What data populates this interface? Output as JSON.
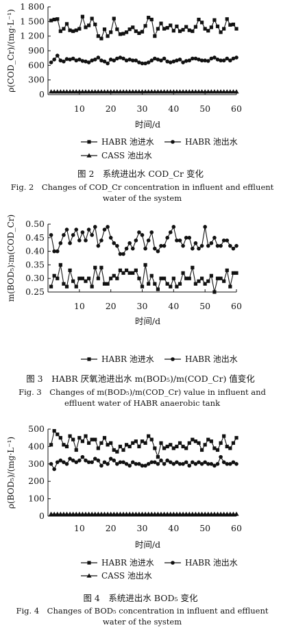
{
  "chart_data": [
    {
      "type": "line",
      "ylabel": "ρ(COD_Cr)/(mg·L⁻¹)",
      "xlabel": "时间/d",
      "ylim": [
        0,
        1800
      ],
      "yticks": [
        "0",
        "300",
        "600",
        "900",
        "1 200",
        "1 500",
        "1 800"
      ],
      "xticks": [
        "10",
        "20",
        "30",
        "40",
        "50",
        "60"
      ],
      "xlim": [
        0,
        60
      ],
      "legend": [
        "HABR 池进水",
        "HABR 池出水",
        "CASS 池出水"
      ],
      "series": [
        {
          "name": "HABR 池进水",
          "marker": "square",
          "x": [
            1,
            2,
            3,
            4,
            5,
            6,
            7,
            8,
            9,
            10,
            11,
            12,
            13,
            14,
            15,
            16,
            17,
            18,
            19,
            20,
            21,
            22,
            23,
            24,
            25,
            26,
            27,
            28,
            29,
            30,
            31,
            32,
            33,
            34,
            35,
            36,
            37,
            38,
            39,
            40,
            41,
            42,
            43,
            44,
            45,
            46,
            47,
            48,
            49,
            50,
            51,
            52,
            53,
            54,
            55,
            56,
            57,
            58,
            59,
            60
          ],
          "values": [
            1520,
            1540,
            1550,
            1300,
            1350,
            1450,
            1320,
            1300,
            1320,
            1350,
            1600,
            1380,
            1420,
            1560,
            1440,
            1200,
            1150,
            1340,
            1200,
            1280,
            1560,
            1340,
            1240,
            1250,
            1280,
            1340,
            1380,
            1300,
            1260,
            1290,
            1410,
            1580,
            1540,
            1200,
            1350,
            1460,
            1350,
            1370,
            1420,
            1310,
            1400,
            1300,
            1330,
            1390,
            1320,
            1300,
            1390,
            1540,
            1480,
            1350,
            1310,
            1380,
            1530,
            1400,
            1280,
            1350,
            1550,
            1430,
            1440,
            1350
          ]
        },
        {
          "name": "HABR 池出水",
          "marker": "circle",
          "x": [
            1,
            2,
            3,
            4,
            5,
            6,
            7,
            8,
            9,
            10,
            11,
            12,
            13,
            14,
            15,
            16,
            17,
            18,
            19,
            20,
            21,
            22,
            23,
            24,
            25,
            26,
            27,
            28,
            29,
            30,
            31,
            32,
            33,
            34,
            35,
            36,
            37,
            38,
            39,
            40,
            41,
            42,
            43,
            44,
            45,
            46,
            47,
            48,
            49,
            50,
            51,
            52,
            53,
            54,
            55,
            56,
            57,
            58,
            59,
            60
          ],
          "values": [
            660,
            720,
            800,
            700,
            680,
            730,
            720,
            740,
            700,
            720,
            690,
            680,
            660,
            700,
            720,
            760,
            700,
            680,
            640,
            720,
            700,
            740,
            760,
            740,
            700,
            720,
            700,
            700,
            660,
            640,
            640,
            660,
            700,
            740,
            720,
            700,
            740,
            680,
            660,
            680,
            700,
            720,
            660,
            690,
            700,
            740,
            740,
            720,
            700,
            700,
            690,
            740,
            760,
            720,
            700,
            700,
            740,
            700,
            740,
            760
          ]
        },
        {
          "name": "CASS 池出水",
          "marker": "triangle",
          "x": [
            1,
            2,
            3,
            4,
            5,
            6,
            7,
            8,
            9,
            10,
            11,
            12,
            13,
            14,
            15,
            16,
            17,
            18,
            19,
            20,
            21,
            22,
            23,
            24,
            25,
            26,
            27,
            28,
            29,
            30,
            31,
            32,
            33,
            34,
            35,
            36,
            37,
            38,
            39,
            40,
            41,
            42,
            43,
            44,
            45,
            46,
            47,
            48,
            49,
            50,
            51,
            52,
            53,
            54,
            55,
            56,
            57,
            58,
            59,
            60
          ],
          "values": [
            60,
            60,
            60,
            60,
            60,
            60,
            60,
            60,
            60,
            60,
            60,
            60,
            60,
            60,
            60,
            60,
            60,
            60,
            60,
            60,
            60,
            60,
            60,
            60,
            60,
            60,
            60,
            60,
            60,
            60,
            60,
            60,
            60,
            60,
            60,
            60,
            60,
            60,
            60,
            60,
            60,
            60,
            60,
            60,
            60,
            60,
            60,
            60,
            60,
            60,
            60,
            60,
            60,
            60,
            60,
            60,
            60,
            60,
            60,
            60
          ]
        }
      ],
      "caption_zh": "图 2　系统进出水 COD_Cr 变化",
      "caption_en": "Fig. 2　Changes of COD_Cr concentration in influent and effluent water of the system"
    },
    {
      "type": "line",
      "ylabel": "m(BOD₅)∶m(COD_Cr)",
      "xlabel": "时间/d",
      "ylim": [
        0.25,
        0.5
      ],
      "yticks": [
        "0.25",
        "0.30",
        "0.35",
        "0.40",
        "0.45",
        "0.50"
      ],
      "xticks": [
        "10",
        "20",
        "30",
        "40",
        "50",
        "60"
      ],
      "xlim": [
        0,
        60
      ],
      "legend": [
        "HABR 池进水",
        "HABR 池出水"
      ],
      "series": [
        {
          "name": "HABR 池进水",
          "marker": "square",
          "x": [
            1,
            2,
            3,
            4,
            5,
            6,
            7,
            8,
            9,
            10,
            11,
            12,
            13,
            14,
            15,
            16,
            17,
            18,
            19,
            20,
            21,
            22,
            23,
            24,
            25,
            26,
            27,
            28,
            29,
            30,
            31,
            32,
            33,
            34,
            35,
            36,
            37,
            38,
            39,
            40,
            41,
            42,
            43,
            44,
            45,
            46,
            47,
            48,
            49,
            50,
            51,
            52,
            53,
            54,
            55,
            56,
            57,
            58,
            59,
            60
          ],
          "values": [
            0.27,
            0.31,
            0.3,
            0.35,
            0.28,
            0.27,
            0.33,
            0.29,
            0.27,
            0.3,
            0.3,
            0.29,
            0.3,
            0.27,
            0.34,
            0.3,
            0.34,
            0.28,
            0.28,
            0.3,
            0.31,
            0.3,
            0.33,
            0.32,
            0.33,
            0.32,
            0.32,
            0.33,
            0.3,
            0.27,
            0.35,
            0.28,
            0.31,
            0.28,
            0.26,
            0.3,
            0.3,
            0.28,
            0.27,
            0.3,
            0.27,
            0.28,
            0.32,
            0.3,
            0.3,
            0.34,
            0.28,
            0.29,
            0.3,
            0.28,
            0.29,
            0.31,
            0.25,
            0.3,
            0.3,
            0.29,
            0.33,
            0.27,
            0.32,
            0.32
          ]
        },
        {
          "name": "HABR 池出水",
          "marker": "circle",
          "x": [
            1,
            2,
            3,
            4,
            5,
            6,
            7,
            8,
            9,
            10,
            11,
            12,
            13,
            14,
            15,
            16,
            17,
            18,
            19,
            20,
            21,
            22,
            23,
            24,
            25,
            26,
            27,
            28,
            29,
            30,
            31,
            32,
            33,
            34,
            35,
            36,
            37,
            38,
            39,
            40,
            41,
            42,
            43,
            44,
            45,
            46,
            47,
            48,
            49,
            50,
            51,
            52,
            53,
            54,
            55,
            56,
            57,
            58,
            59,
            60
          ],
          "values": [
            0.46,
            0.4,
            0.4,
            0.43,
            0.46,
            0.48,
            0.43,
            0.46,
            0.48,
            0.44,
            0.47,
            0.44,
            0.48,
            0.46,
            0.49,
            0.42,
            0.44,
            0.48,
            0.49,
            0.45,
            0.43,
            0.42,
            0.39,
            0.39,
            0.41,
            0.43,
            0.41,
            0.44,
            0.47,
            0.46,
            0.41,
            0.44,
            0.47,
            0.41,
            0.4,
            0.42,
            0.42,
            0.45,
            0.47,
            0.49,
            0.44,
            0.44,
            0.42,
            0.45,
            0.45,
            0.41,
            0.43,
            0.41,
            0.42,
            0.49,
            0.42,
            0.43,
            0.45,
            0.42,
            0.42,
            0.44,
            0.44,
            0.42,
            0.41,
            0.42
          ]
        }
      ],
      "caption_zh": "图 3　HABR 厌氧池进出水 m(BOD₅)/m(COD_Cr) 值变化",
      "caption_en": "Fig. 3　Changes of m(BOD₅)/m(COD_Cr) value in influent and effluent water of HABR anaerobic tank"
    },
    {
      "type": "line",
      "ylabel": "ρ(BOD₅)/(mg·L⁻¹)",
      "xlabel": "时间/d",
      "ylim": [
        0,
        500
      ],
      "yticks": [
        "0",
        "100",
        "200",
        "300",
        "400",
        "500"
      ],
      "xticks": [
        "10",
        "20",
        "30",
        "40",
        "50",
        "60"
      ],
      "xlim": [
        0,
        60
      ],
      "legend": [
        "HABR 池进水",
        "HABR 池出水",
        "CASS 池出水"
      ],
      "series": [
        {
          "name": "HABR 池进水",
          "marker": "square",
          "x": [
            1,
            2,
            3,
            4,
            5,
            6,
            7,
            8,
            9,
            10,
            11,
            12,
            13,
            14,
            15,
            16,
            17,
            18,
            19,
            20,
            21,
            22,
            23,
            24,
            25,
            26,
            27,
            28,
            29,
            30,
            31,
            32,
            33,
            34,
            35,
            36,
            37,
            38,
            39,
            40,
            41,
            42,
            43,
            44,
            45,
            46,
            47,
            48,
            49,
            50,
            51,
            52,
            53,
            54,
            55,
            56,
            57,
            58,
            59,
            60
          ],
          "values": [
            410,
            490,
            470,
            450,
            410,
            400,
            460,
            440,
            380,
            450,
            430,
            460,
            420,
            440,
            440,
            390,
            420,
            450,
            410,
            420,
            380,
            370,
            400,
            380,
            410,
            400,
            420,
            430,
            400,
            430,
            420,
            460,
            440,
            390,
            340,
            420,
            390,
            400,
            410,
            390,
            400,
            420,
            400,
            390,
            420,
            440,
            430,
            420,
            380,
            410,
            440,
            430,
            390,
            380,
            420,
            460,
            400,
            390,
            420,
            450
          ]
        },
        {
          "name": "HABR 池出水",
          "marker": "circle",
          "x": [
            1,
            2,
            3,
            4,
            5,
            6,
            7,
            8,
            9,
            10,
            11,
            12,
            13,
            14,
            15,
            16,
            17,
            18,
            19,
            20,
            21,
            22,
            23,
            24,
            25,
            26,
            27,
            28,
            29,
            30,
            31,
            32,
            33,
            34,
            35,
            36,
            37,
            38,
            39,
            40,
            41,
            42,
            43,
            44,
            45,
            46,
            47,
            48,
            49,
            50,
            51,
            52,
            53,
            54,
            55,
            56,
            57,
            58,
            59,
            60
          ],
          "values": [
            300,
            270,
            310,
            320,
            310,
            300,
            330,
            320,
            310,
            320,
            340,
            320,
            310,
            310,
            330,
            320,
            290,
            310,
            300,
            330,
            320,
            300,
            310,
            310,
            300,
            290,
            310,
            300,
            300,
            290,
            290,
            300,
            310,
            310,
            300,
            320,
            300,
            320,
            310,
            300,
            310,
            300,
            300,
            310,
            290,
            310,
            300,
            310,
            300,
            310,
            300,
            300,
            290,
            300,
            340,
            310,
            300,
            300,
            310,
            300
          ]
        },
        {
          "name": "CASS 池出水",
          "marker": "triangle",
          "x": [
            1,
            2,
            3,
            4,
            5,
            6,
            7,
            8,
            9,
            10,
            11,
            12,
            13,
            14,
            15,
            16,
            17,
            18,
            19,
            20,
            21,
            22,
            23,
            24,
            25,
            26,
            27,
            28,
            29,
            30,
            31,
            32,
            33,
            34,
            35,
            36,
            37,
            38,
            39,
            40,
            41,
            42,
            43,
            44,
            45,
            46,
            47,
            48,
            49,
            50,
            51,
            52,
            53,
            54,
            55,
            56,
            57,
            58,
            59,
            60
          ],
          "values": [
            12,
            12,
            12,
            12,
            12,
            12,
            12,
            12,
            12,
            12,
            12,
            12,
            12,
            12,
            12,
            12,
            12,
            12,
            12,
            12,
            12,
            12,
            12,
            12,
            12,
            12,
            12,
            12,
            12,
            12,
            12,
            12,
            12,
            12,
            12,
            12,
            12,
            12,
            12,
            12,
            12,
            12,
            12,
            12,
            12,
            12,
            12,
            12,
            12,
            12,
            12,
            12,
            12,
            12,
            12,
            12,
            12,
            12,
            12,
            12
          ]
        }
      ],
      "caption_zh": "图 4　系统进出水 BOD₅ 变化",
      "caption_en": "Fig. 4　Changes of BOD₅ concentration in influent and effluent water of the system"
    }
  ]
}
